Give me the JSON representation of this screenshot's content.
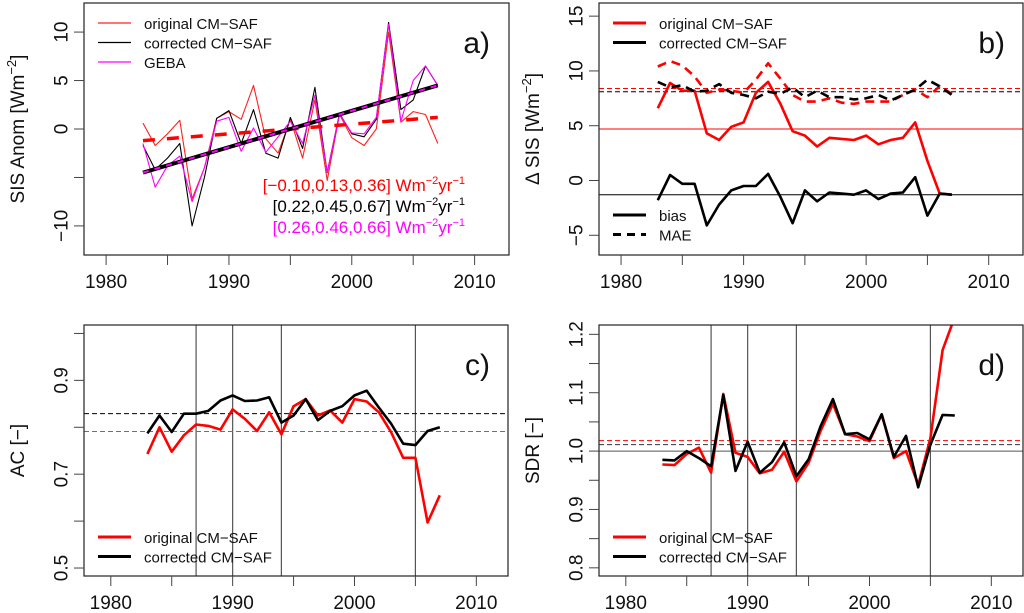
{
  "chart_data": [
    {
      "id": "a",
      "type": "line",
      "panel_label": "a)",
      "title": "",
      "xlabel": "",
      "ylabel": "SIS Anom [Wm^-2]",
      "xlim": [
        1978.2,
        2012.8
      ],
      "ylim": [
        -13,
        13
      ],
      "xticks": [
        1980,
        1985,
        1990,
        1995,
        2000,
        2005,
        2010
      ],
      "xtick_labels": [
        "1980",
        "",
        "1990",
        "",
        "2000",
        "",
        "2010"
      ],
      "yticks": [
        -10,
        -5,
        0,
        5,
        10
      ],
      "ytick_labels": [
        "−10",
        "",
        "0",
        "5",
        "10"
      ],
      "x": [
        1983,
        1984,
        1985,
        1986,
        1987,
        1988,
        1989,
        1990,
        1991,
        1992,
        1993,
        1994,
        1995,
        1996,
        1997,
        1998,
        1999,
        2000,
        2001,
        2002,
        2003,
        2004,
        2005,
        2006,
        2007
      ],
      "series": [
        {
          "name": "original CM−SAF",
          "color": "#ff2020",
          "width": 1,
          "values": [
            0.6,
            -1.7,
            -0.5,
            0.9,
            -7.2,
            -4.0,
            1.1,
            1.8,
            1.0,
            4.5,
            -1.0,
            -2.5,
            1.0,
            -3.0,
            3.0,
            -5.3,
            1.5,
            -0.9,
            -1.7,
            0.0,
            10.0,
            0.7,
            1.8,
            1.5,
            -1.5
          ]
        },
        {
          "name": "corrected CM−SAF",
          "color": "#000000",
          "width": 1,
          "values": [
            -1.7,
            -4.2,
            -3.0,
            -1.5,
            -10.0,
            -5.0,
            1.1,
            1.9,
            -1.5,
            2.0,
            -2.5,
            -3.0,
            1.2,
            -2.0,
            4.3,
            -4.5,
            1.6,
            -0.5,
            -0.8,
            1.0,
            11.0,
            2.0,
            3.0,
            6.5,
            4.5
          ]
        },
        {
          "name": "GEBA",
          "color": "#ff00ff",
          "width": 1,
          "values": [
            -1.5,
            -6.0,
            -3.8,
            -2.8,
            -7.5,
            -4.0,
            0.8,
            1.2,
            -2.3,
            0.1,
            -2.4,
            -0.8,
            0.8,
            -1.5,
            3.5,
            -4.5,
            1.5,
            -0.4,
            -0.5,
            1.2,
            10.8,
            0.8,
            5.0,
            6.5,
            4.5
          ]
        }
      ],
      "trends": [
        {
          "name": "original trend",
          "color": "#ff0000",
          "dash": true,
          "x": [
            1983,
            2007
          ],
          "y": [
            -1.2,
            1.2
          ]
        },
        {
          "name": "corrected trend",
          "color": "#000000",
          "dash": false,
          "x": [
            1983,
            2007
          ],
          "y": [
            -4.5,
            4.5
          ]
        },
        {
          "name": "GEBA trend",
          "color": "#ff00ff",
          "dash": true,
          "x": [
            1983,
            2007
          ],
          "y": [
            -4.5,
            4.5
          ]
        }
      ],
      "legend": {
        "position": "top-left",
        "entries": [
          {
            "label": "original CM−SAF",
            "color": "#ff2020"
          },
          {
            "label": "corrected CM−SAF",
            "color": "#000000"
          },
          {
            "label": "GEBA",
            "color": "#ff00ff"
          }
        ]
      },
      "annotations": [
        {
          "text": "[−0.10,0.13,0.36] Wm",
          "sup1": "−2",
          "mid": "yr",
          "sup2": "−1",
          "color": "#ff0000"
        },
        {
          "text": "[0.22,0.45,0.67] Wm",
          "sup1": "−2",
          "mid": "yr",
          "sup2": "−1",
          "color": "#000000"
        },
        {
          "text": "[0.26,0.46,0.66]  Wm",
          "sup1": "−2",
          "mid": "yr",
          "sup2": "−1",
          "color": "#ff00ff"
        }
      ]
    },
    {
      "id": "b",
      "type": "line",
      "panel_label": "b)",
      "xlabel": "",
      "ylabel": "Δ SIS [Wm^-2]",
      "xlim": [
        1978.2,
        2012.8
      ],
      "ylim": [
        -6.8,
        16.2
      ],
      "xticks": [
        1980,
        1985,
        1990,
        1995,
        2000,
        2005,
        2010
      ],
      "xtick_labels": [
        "1980",
        "",
        "1990",
        "",
        "2000",
        "",
        "2010"
      ],
      "yticks": [
        -5,
        0,
        5,
        10,
        15
      ],
      "ytick_labels": [
        "−5",
        "0",
        "5",
        "10",
        "15"
      ],
      "x": [
        1983,
        1984,
        1985,
        1986,
        1987,
        1988,
        1989,
        1990,
        1991,
        1992,
        1993,
        1994,
        1995,
        1996,
        1997,
        1998,
        1999,
        2000,
        2001,
        2002,
        2003,
        2004,
        2005,
        2006,
        2007
      ],
      "series": [
        {
          "name": "original CM−SAF bias",
          "color": "#ff0000",
          "dash": false,
          "values": [
            6.6,
            8.9,
            8.2,
            8.2,
            4.3,
            3.7,
            4.9,
            5.3,
            8.0,
            9.0,
            7.0,
            4.5,
            4.1,
            3.1,
            3.9,
            3.8,
            3.7,
            4.1,
            3.3,
            3.7,
            3.9,
            5.3,
            1.8,
            -1.2,
            -1.3
          ]
        },
        {
          "name": "corrected CM−SAF bias",
          "color": "#000000",
          "dash": false,
          "values": [
            -1.8,
            0.5,
            -0.3,
            -0.3,
            -4.1,
            -2.2,
            -0.9,
            -0.5,
            -0.5,
            0.6,
            -1.5,
            -3.9,
            -0.9,
            -1.9,
            -1.1,
            -1.2,
            -1.3,
            -0.9,
            -1.7,
            -1.2,
            -1.1,
            0.3,
            -3.2,
            -1.2,
            -1.3
          ]
        },
        {
          "name": "original CM−SAF MAE",
          "color": "#ff0000",
          "dash": true,
          "values": [
            10.4,
            10.9,
            10.5,
            9.5,
            8.0,
            8.3,
            8.2,
            8.0,
            9.2,
            10.7,
            9.3,
            7.8,
            7.2,
            7.2,
            7.5,
            7.1,
            7.0,
            7.2,
            7.2,
            7.2,
            7.8,
            8.3,
            7.6,
            8.6,
            7.9
          ]
        },
        {
          "name": "corrected CM−SAF MAE",
          "color": "#000000",
          "dash": true,
          "values": [
            9.0,
            8.5,
            8.7,
            8.1,
            8.2,
            8.8,
            8.0,
            7.8,
            7.5,
            8.1,
            7.9,
            8.5,
            7.6,
            8.2,
            7.6,
            7.6,
            7.4,
            7.5,
            7.8,
            7.3,
            7.8,
            8.3,
            9.2,
            8.6,
            7.8
          ]
        }
      ],
      "hlines": [
        {
          "y": 4.7,
          "color": "#ff0000",
          "dash": false
        },
        {
          "y": -1.3,
          "color": "#000000",
          "dash": false
        },
        {
          "y": 8.4,
          "color": "#ff0000",
          "dash": true
        },
        {
          "y": 8.1,
          "color": "#000000",
          "dash": true
        }
      ],
      "legend": {
        "position": "top-left",
        "entries": [
          {
            "label": "original CM−SAF",
            "color": "#ff0000"
          },
          {
            "label": "corrected CM−SAF",
            "color": "#000000"
          }
        ]
      },
      "legend2": {
        "position": "bottom-left",
        "entries": [
          {
            "label": "bias",
            "color": "#000000",
            "dash": false
          },
          {
            "label": "MAE",
            "color": "#000000",
            "dash": true
          }
        ]
      }
    },
    {
      "id": "c",
      "type": "line",
      "panel_label": "c)",
      "xlabel": "",
      "ylabel": "AC [−]",
      "xlim": [
        1977.8,
        2012.6
      ],
      "ylim": [
        0.483,
        1.018
      ],
      "xticks": [
        1980,
        1985,
        1990,
        1995,
        2000,
        2005,
        2010
      ],
      "xtick_labels": [
        "1980",
        "",
        "1990",
        "",
        "2000",
        "",
        "2010"
      ],
      "yticks": [
        0.5,
        0.6,
        0.7,
        0.8,
        0.9,
        1.0
      ],
      "ytick_labels": [
        "0.5",
        "",
        "0.7",
        "",
        "0.9",
        ""
      ],
      "x": [
        1983,
        1984,
        1985,
        1986,
        1987,
        1988,
        1989,
        1990,
        1991,
        1992,
        1993,
        1994,
        1995,
        1996,
        1997,
        1998,
        1999,
        2000,
        2001,
        2002,
        2003,
        2004,
        2005,
        2006,
        2007
      ],
      "series": [
        {
          "name": "original CM−SAF",
          "color": "#ff0000",
          "values": [
            0.743,
            0.8,
            0.748,
            0.783,
            0.806,
            0.803,
            0.795,
            0.838,
            0.818,
            0.792,
            0.832,
            0.785,
            0.845,
            0.86,
            0.825,
            0.836,
            0.81,
            0.86,
            0.855,
            0.832,
            0.79,
            0.735,
            0.735,
            0.597,
            0.655
          ]
        },
        {
          "name": "corrected CM−SAF",
          "color": "#000000",
          "values": [
            0.787,
            0.825,
            0.79,
            0.829,
            0.829,
            0.835,
            0.857,
            0.868,
            0.856,
            0.857,
            0.864,
            0.81,
            0.825,
            0.86,
            0.815,
            0.835,
            0.845,
            0.868,
            0.878,
            0.842,
            0.808,
            0.765,
            0.762,
            0.792,
            0.8
          ]
        }
      ],
      "hlines": [
        {
          "y": 0.829,
          "color": "#000000",
          "dash": true
        },
        {
          "y": 0.791,
          "color": "#ff3333",
          "dash": true
        }
      ],
      "vlines": [
        1987,
        1990,
        1994,
        2005
      ],
      "legend": {
        "position": "bottom-left",
        "entries": [
          {
            "label": "original CM−SAF",
            "color": "#ff0000"
          },
          {
            "label": "corrected CM−SAF",
            "color": "#000000"
          }
        ]
      }
    },
    {
      "id": "d",
      "type": "line",
      "panel_label": "d)",
      "xlabel": "",
      "ylabel": "SDR [−]",
      "xlim": [
        1977.8,
        2012.6
      ],
      "ylim": [
        0.786,
        1.216
      ],
      "xticks": [
        1980,
        1985,
        1990,
        1995,
        2000,
        2005,
        2010
      ],
      "xtick_labels": [
        "1980",
        "",
        "1990",
        "",
        "2000",
        "",
        "2010"
      ],
      "yticks": [
        0.8,
        0.85,
        0.9,
        0.95,
        1.0,
        1.05,
        1.1,
        1.15,
        1.2
      ],
      "ytick_labels": [
        "0.8",
        "",
        "0.9",
        "",
        "1.0",
        "",
        "1.1",
        "",
        "1.2"
      ],
      "x": [
        1983,
        1984,
        1985,
        1986,
        1987,
        1988,
        1989,
        1990,
        1991,
        1992,
        1993,
        1994,
        1995,
        1996,
        1997,
        1998,
        1999,
        2000,
        2001,
        2002,
        2003,
        2004,
        2005,
        2006,
        2007
      ],
      "series": [
        {
          "name": "original CM−SAF",
          "color": "#ff0000",
          "values": [
            0.977,
            0.976,
            0.995,
            1.006,
            0.963,
            1.098,
            0.997,
            0.99,
            0.962,
            0.968,
            0.999,
            0.948,
            0.98,
            1.035,
            1.081,
            1.029,
            1.025,
            1.017,
            1.063,
            0.988,
            1.0,
            0.942,
            1.022,
            1.173,
            1.23
          ]
        },
        {
          "name": "corrected CM−SAF",
          "color": "#000000",
          "values": [
            0.985,
            0.984,
            1.0,
            0.988,
            0.974,
            1.096,
            0.966,
            1.016,
            0.963,
            0.981,
            1.015,
            0.957,
            0.986,
            1.043,
            1.089,
            1.029,
            1.031,
            1.02,
            1.063,
            0.99,
            1.026,
            0.938,
            1.011,
            1.062,
            1.061
          ]
        }
      ],
      "hlines": [
        {
          "y": 1.0,
          "color": "#555555",
          "dash": false
        },
        {
          "y": 1.018,
          "color": "#ff0000",
          "dash": true
        },
        {
          "y": 1.011,
          "color": "#333333",
          "dash": true
        }
      ],
      "vlines": [
        1987,
        1990,
        1994,
        2005
      ],
      "legend": {
        "position": "bottom-left",
        "entries": [
          {
            "label": "original CM−SAF",
            "color": "#ff0000"
          },
          {
            "label": "corrected CM−SAF",
            "color": "#000000"
          }
        ]
      }
    }
  ]
}
